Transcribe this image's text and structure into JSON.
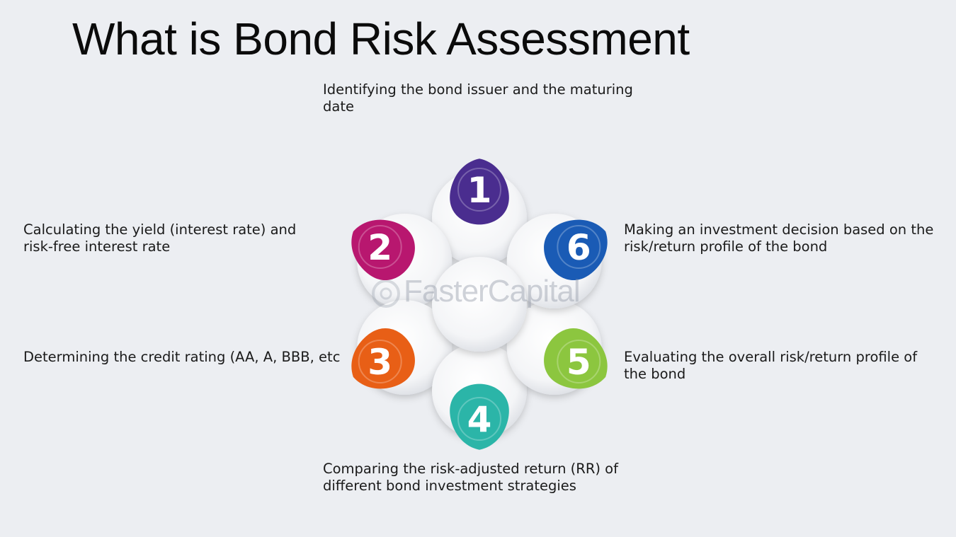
{
  "title": "What is Bond Risk Assessment",
  "watermark": "FasterCapital",
  "steps": [
    {
      "number": "1",
      "color": "#4a2d8f",
      "text": "Identifying the bond issuer and the maturing date"
    },
    {
      "number": "2",
      "color": "#b8176f",
      "text": "Calculating the yield (interest rate) and risk-free interest rate"
    },
    {
      "number": "3",
      "color": "#e85f16",
      "text": "Determining the credit rating (AA, A, BBB, etc"
    },
    {
      "number": "4",
      "color": "#2bb5a8",
      "text": "Comparing the risk-adjusted return (RR) of different bond investment strategies"
    },
    {
      "number": "5",
      "color": "#8cc63f",
      "text": "Evaluating the overall risk/return profile of the bond"
    },
    {
      "number": "6",
      "color": "#1a5bb5",
      "text": "Making an investment decision based on the risk/return profile of the bond"
    }
  ]
}
